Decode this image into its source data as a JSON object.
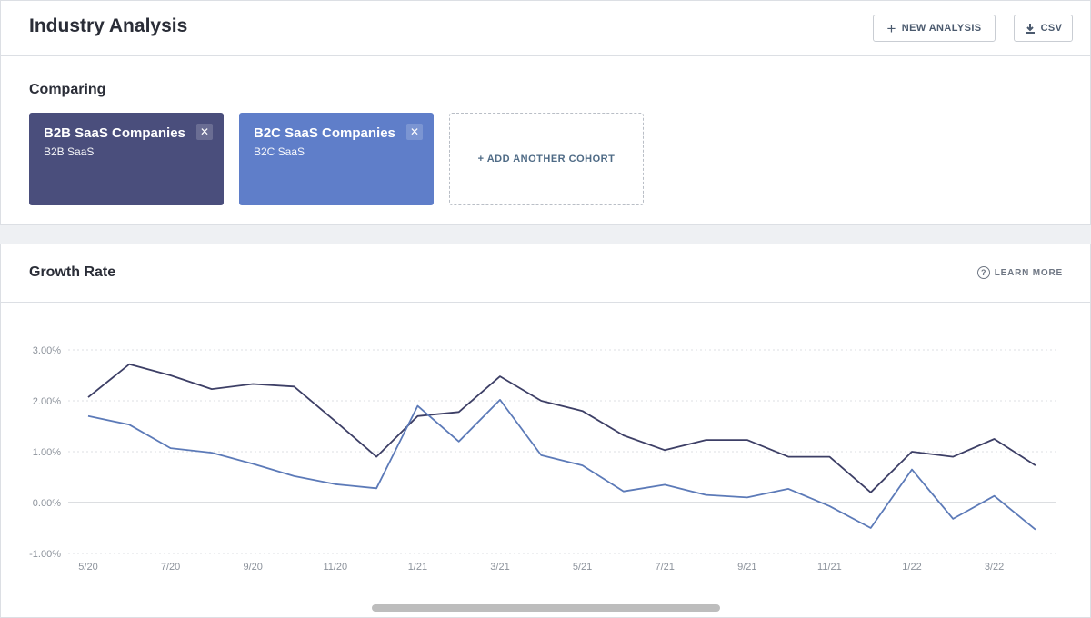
{
  "header": {
    "title": "Industry Analysis",
    "new_analysis_label": "NEW ANALYSIS",
    "csv_label": "CSV"
  },
  "comparing": {
    "label": "Comparing",
    "cohorts": [
      {
        "name": "B2B SaaS Companies",
        "sub": "B2B SaaS",
        "color": "#4a4e7c"
      },
      {
        "name": "B2C SaaS Companies",
        "sub": "B2C SaaS",
        "color": "#5f7ec9"
      }
    ],
    "add_label": "+ ADD ANOTHER COHORT"
  },
  "growth": {
    "title": "Growth Rate",
    "learn_more": "LEARN MORE"
  },
  "chart_data": {
    "type": "line",
    "x": [
      "5/20",
      "6/20",
      "7/20",
      "8/20",
      "9/20",
      "10/20",
      "11/20",
      "12/20",
      "1/21",
      "2/21",
      "3/21",
      "4/21",
      "5/21",
      "6/21",
      "7/21",
      "8/21",
      "9/21",
      "10/21",
      "11/21",
      "12/21",
      "1/22",
      "2/22",
      "3/22",
      "4/22"
    ],
    "tick_labels": [
      "5/20",
      "7/20",
      "9/20",
      "11/20",
      "1/21",
      "3/21",
      "5/21",
      "7/21",
      "9/21",
      "11/21",
      "1/22",
      "3/22"
    ],
    "y_ticks": [
      "3.00%",
      "2.00%",
      "1.00%",
      "0.00%",
      "-1.00%"
    ],
    "ylim": [
      -1,
      3
    ],
    "grid": true,
    "series": [
      {
        "color": "#3d3f66",
        "values": [
          2.07,
          2.72,
          2.5,
          2.23,
          2.33,
          2.28,
          1.6,
          0.9,
          1.7,
          1.78,
          2.48,
          2.0,
          1.8,
          1.32,
          1.03,
          1.23,
          1.23,
          0.9,
          0.9,
          0.2,
          1.0,
          0.9,
          1.25,
          0.73
        ]
      },
      {
        "color": "#5c7ab8",
        "values": [
          1.7,
          1.53,
          1.07,
          0.98,
          0.76,
          0.52,
          0.36,
          0.28,
          1.9,
          1.2,
          2.02,
          0.93,
          0.73,
          0.22,
          0.35,
          0.15,
          0.1,
          0.27,
          -0.07,
          -0.5,
          0.65,
          -0.32,
          0.13,
          -0.53
        ]
      }
    ]
  }
}
